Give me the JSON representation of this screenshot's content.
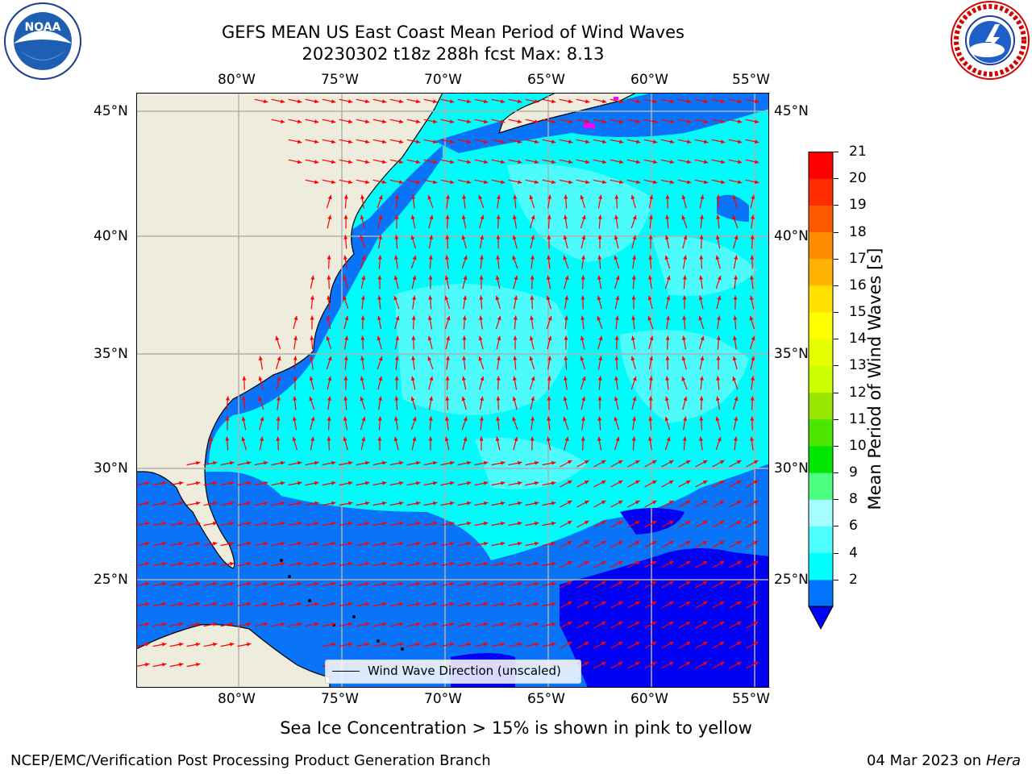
{
  "header": {
    "title_line1": "GEFS MEAN US East Coast Mean Period of Wind Waves",
    "title_line2": "20230302 t18z 288h fcst   Max: 8.13"
  },
  "logos": {
    "left": {
      "text": "NOAA",
      "icon": "noaa-logo-icon"
    },
    "right": {
      "text": "NATIONAL WEATHER SERVICE",
      "icon": "nws-logo-icon"
    }
  },
  "map": {
    "lon_labels": [
      "80°W",
      "75°W",
      "70°W",
      "65°W",
      "60°W",
      "55°W"
    ],
    "lat_labels": [
      "45°N",
      "40°N",
      "35°N",
      "30°N",
      "25°N"
    ],
    "legend_label": "Wind Wave Direction (unscaled)",
    "colors": {
      "land": "#eeecdc",
      "grid": "#b0b0b0",
      "arrow": "#ff0000",
      "sea_ice_pink": "#ff00ff"
    }
  },
  "colorbar": {
    "label": "Mean Period of Wind Waves [s]",
    "ticks": [
      "21",
      "20",
      "19",
      "18",
      "17",
      "16",
      "15",
      "14",
      "13",
      "12",
      "11",
      "10",
      "9",
      "8",
      "6",
      "4",
      "2"
    ],
    "colors_bottom_to_top": [
      "#0073ff",
      "#00ffff",
      "#4dffff",
      "#a6ffff",
      "#4dff80",
      "#00e600",
      "#4de600",
      "#99e600",
      "#ccff00",
      "#e6ff00",
      "#ffff00",
      "#ffe000",
      "#ffb300",
      "#ff8c00",
      "#ff5a00",
      "#ff2d00",
      "#ff0000"
    ],
    "extend_color": "#0000ff"
  },
  "footer": {
    "note": "Sea Ice Concentration > 15% is shown in pink to yellow",
    "credit": "NCEP/EMC/Verification Post Processing Product Generation Branch",
    "date": "04 Mar 2023 on",
    "host": "Hera"
  }
}
